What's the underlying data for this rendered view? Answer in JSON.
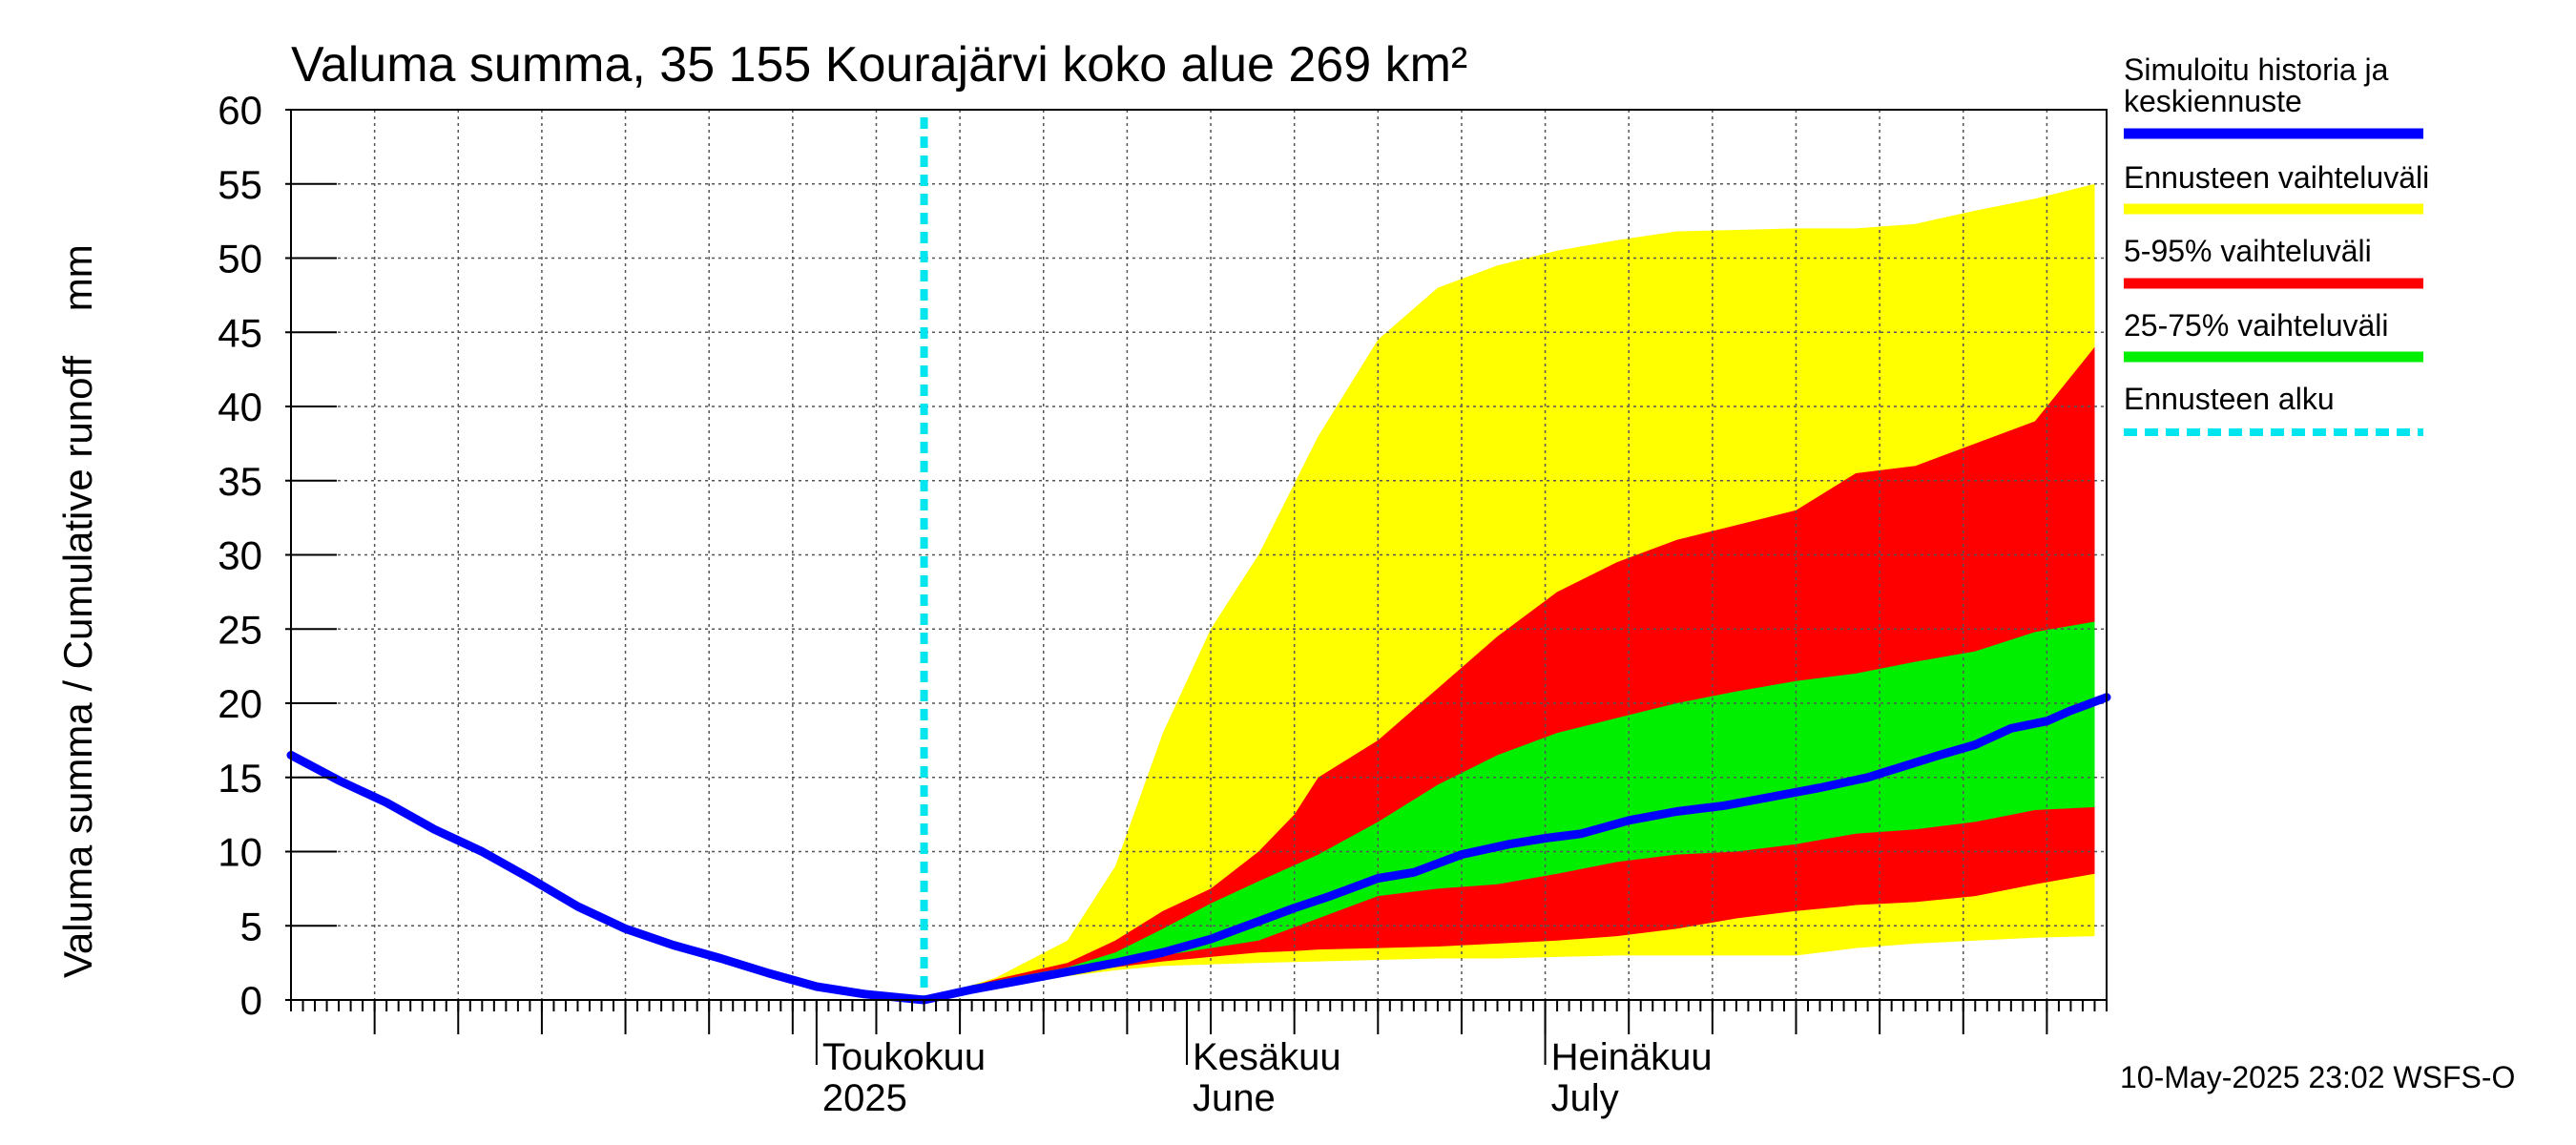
{
  "chart_data": {
    "type": "area",
    "title": "Valuma summa, 35 155 Kourajärvi koko alue 269 km²",
    "ylabel": "Valuma summa / Cumulative runoff    mm",
    "ylim": [
      0,
      60
    ],
    "yticks": [
      0,
      5,
      10,
      15,
      20,
      25,
      30,
      35,
      40,
      45,
      50,
      55,
      60
    ],
    "xlim": [
      "2025-03-18",
      "2025-08-17"
    ],
    "grid": true,
    "legend_position": "right",
    "x_labels": [
      {
        "line1": "Toukokuu",
        "line2": "2025",
        "date": "2025-05-01"
      },
      {
        "line1": "Kesäkuu",
        "line2": "June",
        "date": "2025-06-01"
      },
      {
        "line1": "Heinäkuu",
        "line2": "July",
        "date": "2025-07-01"
      }
    ],
    "forecast_start": "2025-05-10",
    "timestamp": "10-May-2025 23:02 WSFS-O",
    "legend": [
      {
        "label": "Simuloitu historia ja keskiennuste",
        "color": "#0000ff",
        "style": "solid"
      },
      {
        "label": "Ennusteen vaihteluväli",
        "color": "#ffff00",
        "style": "solid"
      },
      {
        "label": "5-95% vaihteluväli",
        "color": "#ff0000",
        "style": "solid"
      },
      {
        "label": "25-75% vaihteluväli",
        "color": "#00ee00",
        "style": "solid"
      },
      {
        "label": "Ennusteen alku",
        "color": "#00e5ee",
        "style": "dashed"
      }
    ],
    "bands": [
      {
        "name": "Ennusteen vaihteluväli",
        "color": "#ffff00",
        "x": [
          "2025-05-10",
          "2025-05-16",
          "2025-05-22",
          "2025-05-26",
          "2025-05-30",
          "2025-06-03",
          "2025-06-07",
          "2025-06-12",
          "2025-06-17",
          "2025-06-22",
          "2025-06-27",
          "2025-07-02",
          "2025-07-07",
          "2025-07-12",
          "2025-07-17",
          "2025-07-22",
          "2025-07-27",
          "2025-08-01",
          "2025-08-06",
          "2025-08-11",
          "2025-08-16"
        ],
        "upper": [
          0.0,
          1.5,
          4.0,
          9.0,
          18.0,
          25.0,
          30.0,
          38.0,
          44.5,
          48.0,
          49.5,
          50.5,
          51.2,
          51.8,
          51.9,
          52.0,
          52.0,
          52.3,
          53.2,
          54.0,
          55.0
        ],
        "lower": [
          0.0,
          1.0,
          1.6,
          2.0,
          2.3,
          2.4,
          2.5,
          2.6,
          2.7,
          2.8,
          2.8,
          2.9,
          3.0,
          3.0,
          3.0,
          3.0,
          3.5,
          3.8,
          4.0,
          4.2,
          4.3
        ]
      },
      {
        "name": "5-95% vaihteluväli",
        "color": "#ff0000",
        "x": [
          "2025-05-10",
          "2025-05-16",
          "2025-05-22",
          "2025-05-26",
          "2025-05-30",
          "2025-06-03",
          "2025-06-07",
          "2025-06-10",
          "2025-06-12",
          "2025-06-17",
          "2025-06-22",
          "2025-06-27",
          "2025-07-02",
          "2025-07-07",
          "2025-07-12",
          "2025-07-17",
          "2025-07-22",
          "2025-07-26",
          "2025-07-27",
          "2025-08-01",
          "2025-08-06",
          "2025-08-11",
          "2025-08-16"
        ],
        "upper": [
          0.0,
          1.4,
          2.5,
          4.0,
          6.0,
          7.5,
          10.0,
          12.5,
          15.0,
          17.5,
          21.0,
          24.5,
          27.5,
          29.5,
          31.0,
          32.0,
          33.0,
          35.0,
          35.5,
          36.0,
          37.5,
          39.0,
          44.0
        ],
        "lower": [
          0.0,
          1.2,
          1.8,
          2.2,
          2.6,
          2.9,
          3.2,
          3.3,
          3.4,
          3.5,
          3.6,
          3.8,
          4.0,
          4.3,
          4.8,
          5.5,
          6.0,
          6.3,
          6.4,
          6.6,
          7.0,
          7.8,
          8.5
        ]
      },
      {
        "name": "25-75% vaihteluväli",
        "color": "#00ee00",
        "x": [
          "2025-05-10",
          "2025-05-16",
          "2025-05-22",
          "2025-05-26",
          "2025-05-30",
          "2025-06-03",
          "2025-06-07",
          "2025-06-12",
          "2025-06-17",
          "2025-06-22",
          "2025-06-27",
          "2025-07-02",
          "2025-07-07",
          "2025-07-12",
          "2025-07-17",
          "2025-07-22",
          "2025-07-27",
          "2025-08-01",
          "2025-08-06",
          "2025-08-11",
          "2025-08-16"
        ],
        "upper": [
          0.0,
          1.3,
          2.2,
          3.2,
          4.8,
          6.5,
          8.0,
          9.8,
          12.0,
          14.5,
          16.5,
          18.0,
          19.0,
          20.0,
          20.8,
          21.5,
          22.0,
          22.8,
          23.5,
          24.8,
          25.5
        ],
        "lower": [
          0.0,
          1.2,
          2.0,
          2.5,
          3.0,
          3.5,
          4.0,
          5.5,
          7.0,
          7.5,
          7.8,
          8.5,
          9.3,
          9.8,
          10.0,
          10.5,
          11.2,
          11.5,
          12.0,
          12.8,
          13.0
        ]
      }
    ],
    "series": [
      {
        "name": "Simuloitu historia ja keskiennuste",
        "color": "#0000ff",
        "x": [
          "2025-03-18",
          "2025-03-22",
          "2025-03-26",
          "2025-03-30",
          "2025-04-03",
          "2025-04-07",
          "2025-04-11",
          "2025-04-15",
          "2025-04-19",
          "2025-04-23",
          "2025-04-27",
          "2025-05-01",
          "2025-05-05",
          "2025-05-10",
          "2025-05-14",
          "2025-05-18",
          "2025-05-22",
          "2025-05-26",
          "2025-05-30",
          "2025-06-03",
          "2025-06-07",
          "2025-06-10",
          "2025-06-13",
          "2025-06-17",
          "2025-06-20",
          "2025-06-24",
          "2025-06-28",
          "2025-07-01",
          "2025-07-04",
          "2025-07-08",
          "2025-07-12",
          "2025-07-16",
          "2025-07-20",
          "2025-07-24",
          "2025-07-28",
          "2025-08-01",
          "2025-08-03",
          "2025-08-06",
          "2025-08-09",
          "2025-08-12",
          "2025-08-14",
          "2025-08-17"
        ],
        "y": [
          16.5,
          14.8,
          13.3,
          11.5,
          10.0,
          8.2,
          6.3,
          4.8,
          3.7,
          2.8,
          1.8,
          0.9,
          0.4,
          0.0,
          0.7,
          1.3,
          1.9,
          2.5,
          3.2,
          4.1,
          5.3,
          6.2,
          7.0,
          8.2,
          8.6,
          9.8,
          10.5,
          10.9,
          11.2,
          12.1,
          12.7,
          13.1,
          13.7,
          14.3,
          15.0,
          16.0,
          16.5,
          17.2,
          18.3,
          18.8,
          19.5,
          20.4
        ]
      }
    ]
  }
}
